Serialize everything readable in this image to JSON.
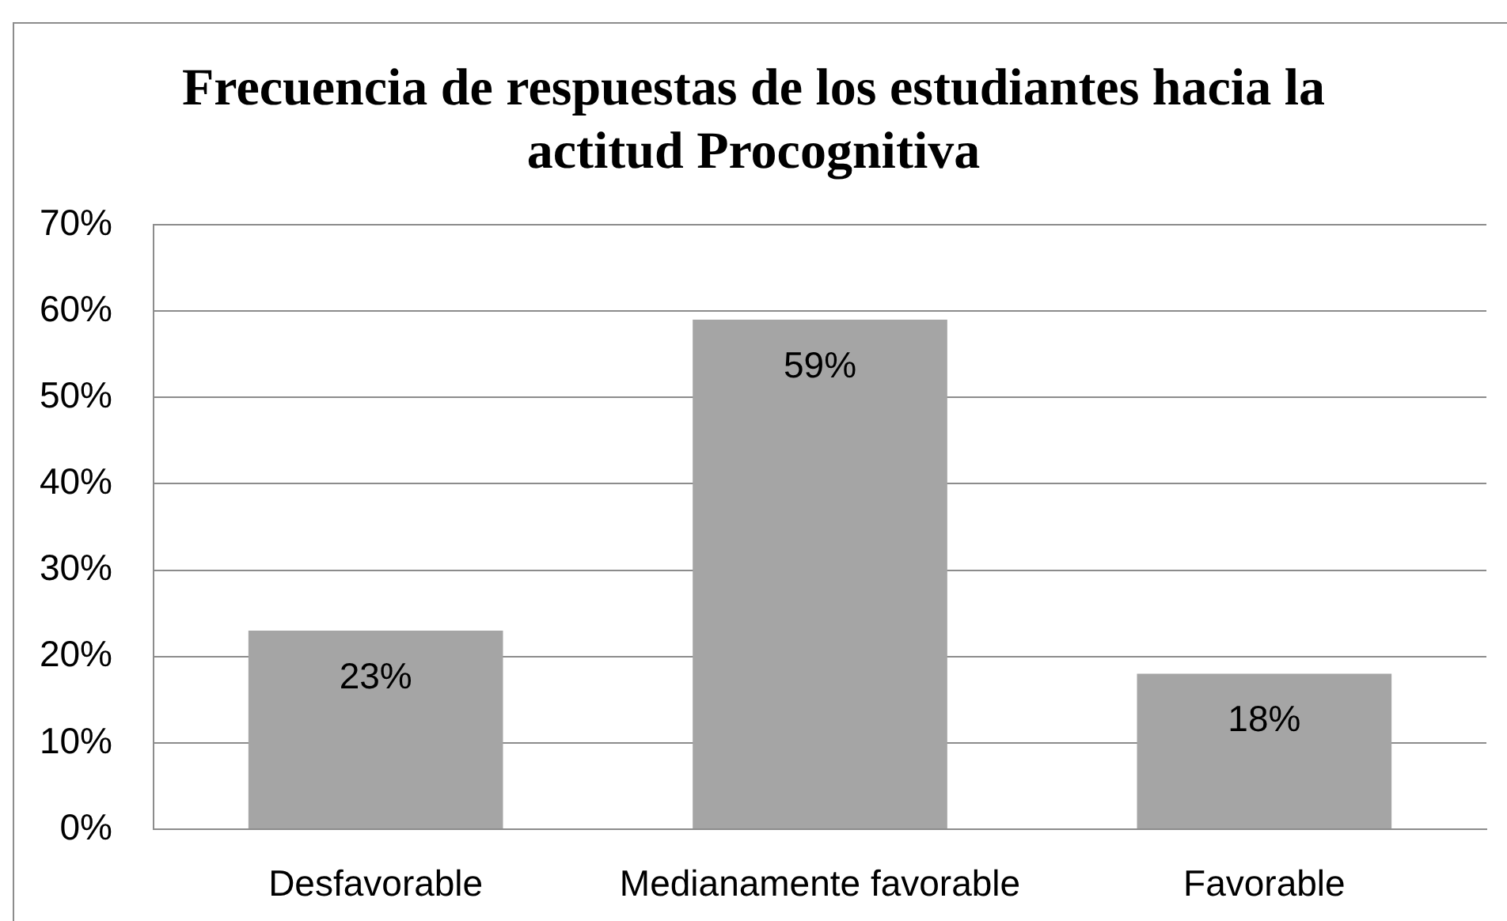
{
  "chart_data": {
    "type": "bar",
    "title": "Frecuencia de respuestas de los estudiantes hacia la actitud Procognitiva",
    "categories": [
      "Desfavorable",
      "Medianamente favorable",
      "Favorable"
    ],
    "values": [
      23,
      59,
      18
    ],
    "color": "#a5a5a5",
    "value_labels": [
      "23%",
      "59%",
      "18%"
    ],
    "ylim": [
      0,
      70
    ],
    "yticks": [
      {
        "value": 0,
        "label": "0%"
      },
      {
        "value": 10,
        "label": "10%"
      },
      {
        "value": 20,
        "label": "20%"
      },
      {
        "value": 30,
        "label": "30%"
      },
      {
        "value": 40,
        "label": "40%"
      },
      {
        "value": 50,
        "label": "50%"
      },
      {
        "value": 60,
        "label": "60%"
      },
      {
        "value": 70,
        "label": "70%"
      }
    ],
    "grid": "y"
  }
}
